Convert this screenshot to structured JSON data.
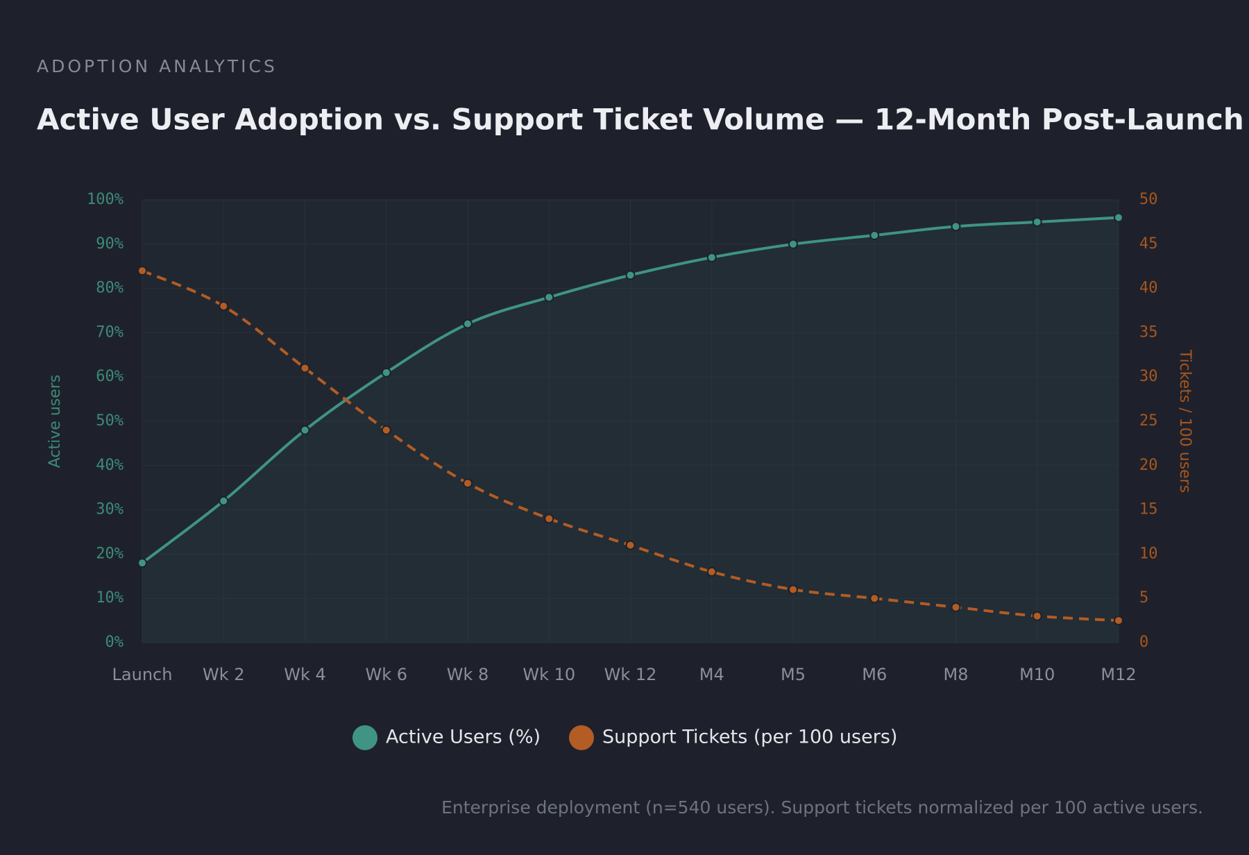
{
  "eyebrow": "ADOPTION ANALYTICS",
  "note": "Enterprise deployment (n=540 users). Support tickets normalized per 100 active users.",
  "chart_data": {
    "type": "line",
    "title": "Active User Adoption vs. Support Ticket Volume — 12-Month Post-Launch",
    "y_label": "Active users",
    "y2_label": "Tickets / 100 users",
    "categories": [
      "Launch",
      "Wk 2",
      "Wk 4",
      "Wk 6",
      "Wk 8",
      "Wk 10",
      "Wk 12",
      "M4",
      "M5",
      "M6",
      "M8",
      "M10",
      "M12"
    ],
    "series": [
      {
        "name": "Active Users (%)",
        "color": "#3f9484",
        "axis": "y",
        "dash": false,
        "values": [
          18,
          32,
          48,
          61,
          72,
          78,
          83,
          87,
          90,
          92,
          94,
          95,
          96
        ]
      },
      {
        "name": "Support Tickets (per 100 users)",
        "color": "#b35c24",
        "axis": "y2",
        "dash": true,
        "values": [
          42,
          38,
          31,
          24,
          18,
          14,
          11,
          8,
          6,
          5,
          4,
          3,
          2.5
        ]
      }
    ],
    "ylim": [
      0,
      100
    ],
    "yticks": [
      {
        "value": 0,
        "label": "0%"
      },
      {
        "value": 10,
        "label": "10%"
      },
      {
        "value": 20,
        "label": "20%"
      },
      {
        "value": 30,
        "label": "30%"
      },
      {
        "value": 40,
        "label": "40%"
      },
      {
        "value": 50,
        "label": "50%"
      },
      {
        "value": 60,
        "label": "60%"
      },
      {
        "value": 70,
        "label": "70%"
      },
      {
        "value": 80,
        "label": "80%"
      },
      {
        "value": 90,
        "label": "90%"
      },
      {
        "value": 100,
        "label": "100%"
      }
    ],
    "y2lim": [
      0,
      50
    ],
    "y2ticks": [
      0,
      5,
      10,
      15,
      20,
      25,
      30,
      35,
      40,
      45,
      50
    ],
    "grid": true
  }
}
